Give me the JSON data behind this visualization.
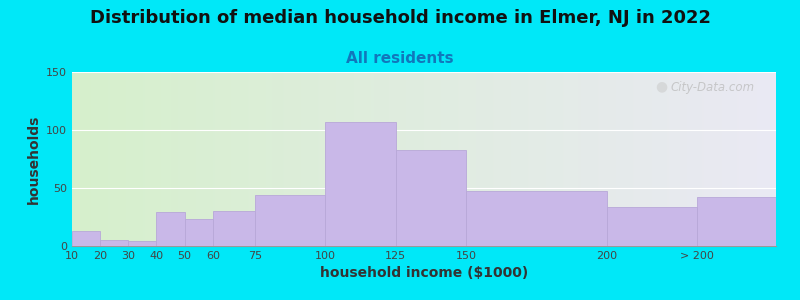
{
  "title": "Distribution of median household income in Elmer, NJ in 2022",
  "subtitle": "All residents",
  "xlabel": "household income ($1000)",
  "ylabel": "households",
  "bar_color": "#c9b8e8",
  "bar_edgecolor": "#b8a8d8",
  "background_outer": "#00e8f8",
  "background_inner_left": "#d6f0cc",
  "background_inner_right": "#e8e6f4",
  "categories": [
    "10",
    "20",
    "30",
    "40",
    "50",
    "60",
    "75",
    "100",
    "125",
    "150",
    "200",
    "> 200"
  ],
  "values": [
    13,
    5,
    4,
    29,
    23,
    30,
    44,
    107,
    83,
    47,
    34,
    42
  ],
  "ylim": [
    0,
    150
  ],
  "yticks": [
    0,
    50,
    100,
    150
  ],
  "watermark": "City-Data.com",
  "title_fontsize": 13,
  "subtitle_fontsize": 11,
  "axis_label_fontsize": 10,
  "x_positions": [
    10,
    20,
    30,
    40,
    50,
    60,
    75,
    100,
    125,
    150,
    200,
    232
  ],
  "widths": [
    10,
    10,
    10,
    10,
    10,
    15,
    25,
    25,
    25,
    50,
    32,
    28
  ],
  "xlim": [
    10,
    260
  ]
}
